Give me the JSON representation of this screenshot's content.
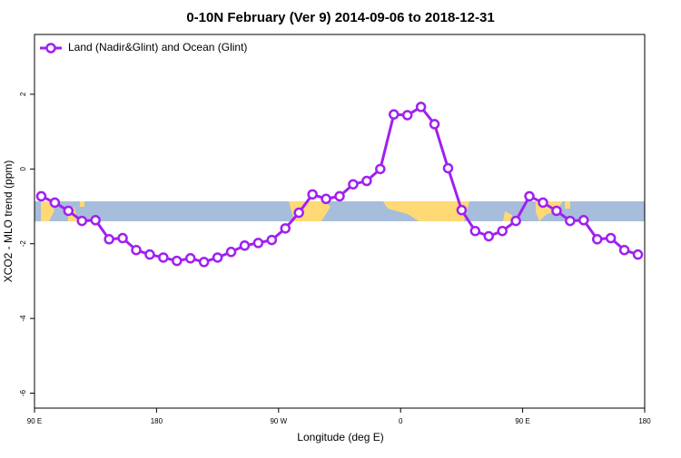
{
  "chart_data": {
    "type": "line",
    "title": "0-10N February (Ver 9)   2014-09-06 to 2018-12-31",
    "x_label": "Longitude (deg E)",
    "y_label": "XCO2 - MLO trend (ppm)",
    "x": [
      95,
      105,
      115,
      125,
      135,
      145,
      155,
      165,
      175,
      185,
      195,
      205,
      215,
      225,
      235,
      245,
      255,
      265,
      275,
      285,
      295,
      305,
      315,
      325,
      335,
      345,
      355,
      365,
      375,
      385,
      395,
      405,
      415,
      425,
      435,
      445,
      455,
      465,
      475,
      485,
      495,
      505,
      515,
      525,
      535
    ],
    "series": [
      {
        "name": "Land (Nadir&Glint) and Ocean (Glint)",
        "color": "#a020f0",
        "values": [
          -0.73,
          -0.9,
          -1.12,
          -1.39,
          -1.37,
          -1.88,
          -1.85,
          -2.17,
          -2.29,
          -2.37,
          -2.46,
          -2.39,
          -2.49,
          -2.37,
          -2.22,
          -2.05,
          -1.98,
          -1.9,
          -1.59,
          -1.17,
          -0.68,
          -0.8,
          -0.73,
          -0.41,
          -0.32,
          0.0,
          1.46,
          1.44,
          1.66,
          1.2,
          0.02,
          -1.1,
          -1.66,
          -1.8,
          -1.66,
          -1.39,
          -0.73,
          -0.9,
          -1.12,
          -1.39,
          -1.37,
          -1.88,
          -1.85,
          -2.17,
          -2.29
        ]
      }
    ],
    "xlim": [
      90,
      540
    ],
    "xticks": [
      {
        "value": 90,
        "label": "90 E"
      },
      180,
      {
        "value": 270,
        "label": "90 W"
      },
      {
        "value": 360,
        "label": "0"
      },
      {
        "value": 450,
        "label": "90 E"
      },
      {
        "value": 540,
        "label": "180"
      }
    ],
    "ylim": [
      -6.4,
      3.6
    ],
    "yticks": [
      -6,
      -4,
      -2,
      0,
      2
    ],
    "legend": "top-left"
  }
}
